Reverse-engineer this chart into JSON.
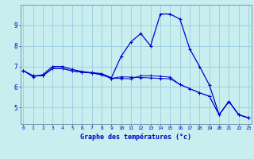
{
  "xlabel": "Graphe des températures (°c)",
  "bg_color": "#c8eef0",
  "plot_bg_color": "#c8eef0",
  "line_color": "#0000cc",
  "grid_color": "#99ccdd",
  "hours": [
    0,
    1,
    2,
    3,
    4,
    5,
    6,
    7,
    8,
    9,
    10,
    11,
    12,
    13,
    14,
    15,
    16,
    17,
    18,
    19,
    20,
    21,
    22,
    23
  ],
  "curve1": [
    6.8,
    6.5,
    6.6,
    7.0,
    7.0,
    6.85,
    6.75,
    6.7,
    6.65,
    6.45,
    7.5,
    8.2,
    8.6,
    8.0,
    9.55,
    9.55,
    9.3,
    7.85,
    7.0,
    6.1,
    4.65,
    5.3,
    4.65,
    4.5
  ],
  "curve2": [
    6.8,
    6.55,
    6.55,
    6.9,
    6.9,
    6.78,
    6.72,
    6.68,
    6.6,
    6.42,
    6.42,
    6.4,
    6.55,
    6.55,
    6.52,
    6.48,
    6.12,
    5.92,
    5.72,
    5.55,
    4.65,
    5.3,
    4.65,
    4.5
  ],
  "curve3": [
    6.8,
    6.55,
    6.55,
    6.9,
    6.9,
    6.78,
    6.72,
    6.68,
    6.6,
    6.42,
    6.5,
    6.48,
    6.46,
    6.44,
    6.42,
    6.4,
    6.12,
    5.92,
    5.72,
    5.55,
    4.65,
    5.3,
    4.65,
    4.5
  ],
  "ylim": [
    4.2,
    10.0
  ],
  "yticks": [
    5,
    6,
    7,
    8,
    9
  ],
  "xlim": [
    -0.3,
    23.3
  ],
  "xticks": [
    0,
    1,
    2,
    3,
    4,
    5,
    6,
    7,
    8,
    9,
    10,
    11,
    12,
    13,
    14,
    15,
    16,
    17,
    18,
    19,
    20,
    21,
    22,
    23
  ]
}
